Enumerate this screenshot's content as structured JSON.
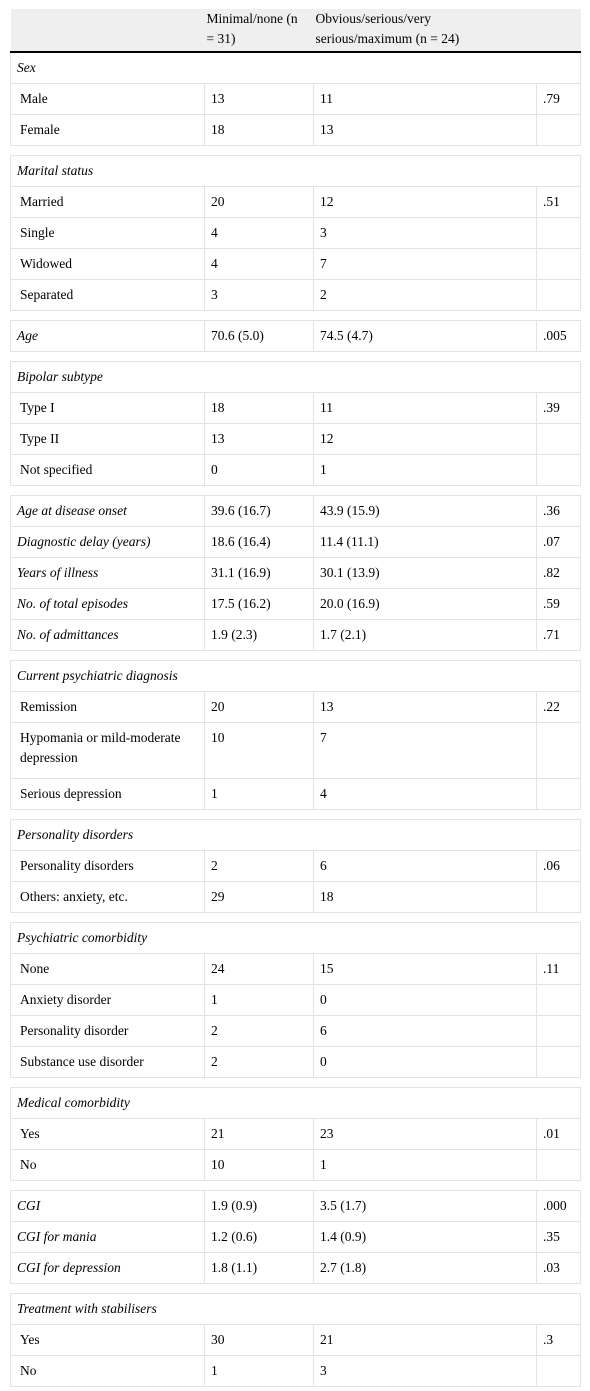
{
  "header": {
    "col1": "",
    "col2": "Minimal/none (n = 31)",
    "col3": "Obvious/serious/very serious/maximum (n = 24)",
    "col4": ""
  },
  "blocks": [
    {
      "type": "section",
      "title": "Sex",
      "rows": [
        {
          "label": "Male",
          "a": "13",
          "b": "11",
          "p": ".79"
        },
        {
          "label": "Female",
          "a": "18",
          "b": "13",
          "p": ""
        }
      ]
    },
    {
      "type": "section",
      "title": "Marital status",
      "rows": [
        {
          "label": "Married",
          "a": "20",
          "b": "12",
          "p": ".51"
        },
        {
          "label": "Single",
          "a": "4",
          "b": "3",
          "p": ""
        },
        {
          "label": "Widowed",
          "a": "4",
          "b": "7",
          "p": ""
        },
        {
          "label": "Separated",
          "a": "3",
          "b": "2",
          "p": ""
        }
      ]
    },
    {
      "type": "vars",
      "rows": [
        {
          "label": "Age",
          "a": "70.6 (5.0)",
          "b": "74.5 (4.7)",
          "p": ".005"
        }
      ]
    },
    {
      "type": "section",
      "title": "Bipolar subtype",
      "rows": [
        {
          "label": "Type I",
          "a": "18",
          "b": "11",
          "p": ".39"
        },
        {
          "label": "Type II",
          "a": "13",
          "b": "12",
          "p": ""
        },
        {
          "label": "Not specified",
          "a": "0",
          "b": "1",
          "p": ""
        }
      ]
    },
    {
      "type": "vars",
      "rows": [
        {
          "label": "Age at disease onset",
          "a": "39.6 (16.7)",
          "b": "43.9 (15.9)",
          "p": ".36"
        },
        {
          "label": "Diagnostic delay (years)",
          "a": "18.6 (16.4)",
          "b": "11.4 (11.1)",
          "p": ".07"
        },
        {
          "label": "Years of illness",
          "a": "31.1 (16.9)",
          "b": "30.1 (13.9)",
          "p": ".82"
        },
        {
          "label": "No. of total episodes",
          "a": "17.5 (16.2)",
          "b": "20.0 (16.9)",
          "p": ".59"
        },
        {
          "label": "No. of admittances",
          "a": "1.9 (2.3)",
          "b": "1.7 (2.1)",
          "p": ".71"
        }
      ]
    },
    {
      "type": "section",
      "title": "Current psychiatric diagnosis",
      "rows": [
        {
          "label": "Remission",
          "a": "20",
          "b": "13",
          "p": ".22"
        },
        {
          "label": "Hypomania or mild-moderate depression",
          "a": "10",
          "b": "7",
          "p": "",
          "tall": true
        },
        {
          "label": "Serious depression",
          "a": "1",
          "b": "4",
          "p": ""
        }
      ]
    },
    {
      "type": "section",
      "title": "Personality disorders",
      "rows": [
        {
          "label": "Personality disorders",
          "a": "2",
          "b": "6",
          "p": ".06"
        },
        {
          "label": "Others: anxiety, etc.",
          "a": "29",
          "b": "18",
          "p": ""
        }
      ]
    },
    {
      "type": "section",
      "title": "Psychiatric comorbidity",
      "rows": [
        {
          "label": "None",
          "a": "24",
          "b": "15",
          "p": ".11"
        },
        {
          "label": "Anxiety disorder",
          "a": "1",
          "b": "0",
          "p": ""
        },
        {
          "label": "Personality disorder",
          "a": "2",
          "b": "6",
          "p": ""
        },
        {
          "label": "Substance use disorder",
          "a": "2",
          "b": "0",
          "p": ""
        }
      ]
    },
    {
      "type": "section",
      "title": "Medical comorbidity",
      "rows": [
        {
          "label": "Yes",
          "a": "21",
          "b": "23",
          "p": ".01"
        },
        {
          "label": "No",
          "a": "10",
          "b": "1",
          "p": ""
        }
      ]
    },
    {
      "type": "vars",
      "rows": [
        {
          "label": "CGI",
          "a": "1.9 (0.9)",
          "b": "3.5 (1.7)",
          "p": ".000"
        },
        {
          "label": "CGI for mania",
          "a": "1.2 (0.6)",
          "b": "1.4 (0.9)",
          "p": ".35"
        },
        {
          "label": "CGI for depression",
          "a": "1.8 (1.1)",
          "b": "2.7 (1.8)",
          "p": ".03"
        }
      ]
    },
    {
      "type": "section",
      "title": "Treatment with stabilisers",
      "rows": [
        {
          "label": "Yes",
          "a": "30",
          "b": "21",
          "p": ".3"
        },
        {
          "label": "No",
          "a": "1",
          "b": "3",
          "p": ""
        }
      ]
    }
  ]
}
